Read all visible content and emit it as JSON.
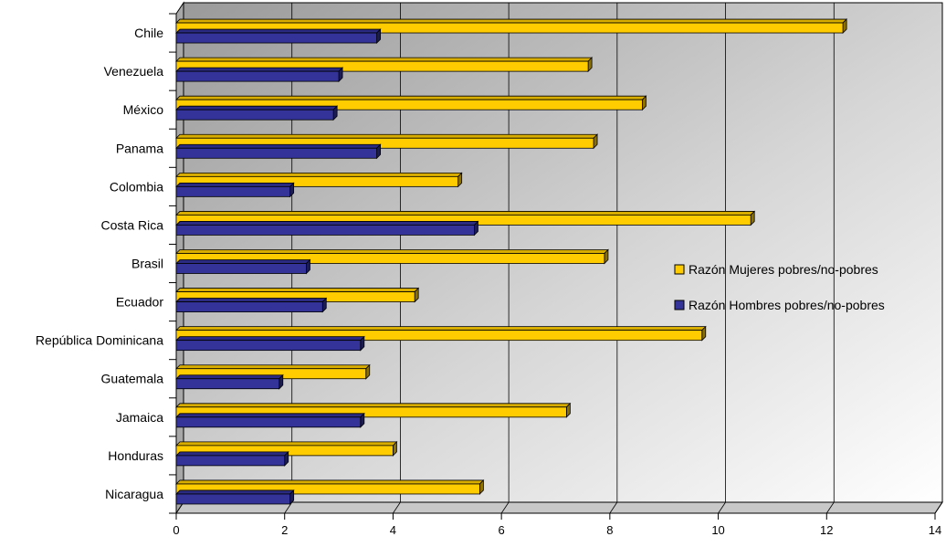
{
  "chart_data": {
    "type": "bar",
    "orientation": "horizontal",
    "style": "3d",
    "categories": [
      "Chile",
      "Venezuela",
      "México",
      "Panama",
      "Colombia",
      "Costa Rica",
      "Brasil",
      "Ecuador",
      "República Dominicana",
      "Guatemala",
      "Jamaica",
      "Honduras",
      "Nicaragua"
    ],
    "series": [
      {
        "name": "Razón Mujeres pobres/no-pobres",
        "color": "#FFCC00",
        "values": [
          12.3,
          7.6,
          8.6,
          7.7,
          5.2,
          10.6,
          7.9,
          4.4,
          9.7,
          3.5,
          7.2,
          4.0,
          5.6
        ]
      },
      {
        "name": "Razón Hombres pobres/no-pobres",
        "color": "#333399",
        "values": [
          3.7,
          3.0,
          2.9,
          3.7,
          2.1,
          5.5,
          2.4,
          2.7,
          3.4,
          1.9,
          3.4,
          2.0,
          2.1
        ]
      }
    ],
    "xlim": [
      0,
      14
    ],
    "xticks": [
      "0",
      "2",
      "4",
      "6",
      "8",
      "10",
      "12",
      "14"
    ],
    "xlabel": "",
    "ylabel": "",
    "title": "",
    "grid": true,
    "legend_position": "right"
  }
}
